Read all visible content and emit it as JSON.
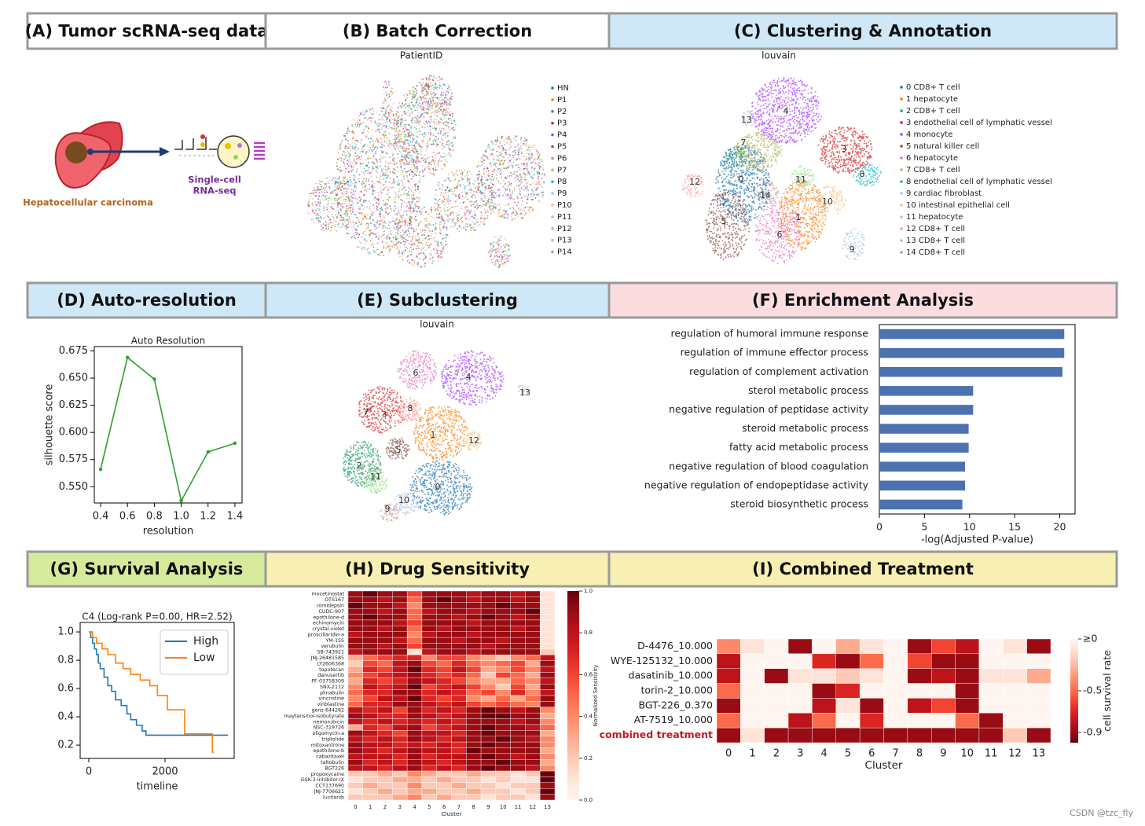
{
  "panels": [
    "(A) Tumor scRNA-seq data",
    "(B) Batch Correction",
    "(C) Clustering & Annotation",
    "(D) Auto-resolution",
    "(E) Subclustering",
    "(F) Enrichment Analysis",
    "(G) Survival Analysis",
    "(H) Drug Sensitivity",
    "(I) Combined Treatment"
  ],
  "illustration": {
    "tumor_label": "Hepatocellular carcinoma",
    "method_label": [
      "Single-cell",
      "RNA-seq"
    ]
  },
  "batch": {
    "title": "PatientID",
    "legend": [
      "HN",
      "P1",
      "P2",
      "P3",
      "P4",
      "P5",
      "P6",
      "P7",
      "P8",
      "P9",
      "P10",
      "P11",
      "P12",
      "P13",
      "P14"
    ],
    "colors": [
      "#1f77b4",
      "#ff7f0e",
      "#279e68",
      "#d62728",
      "#aa40fc",
      "#8c564b",
      "#e377c2",
      "#b5bd61",
      "#17becf",
      "#aec7e8",
      "#ffbb78",
      "#98df8a",
      "#ff9896",
      "#c5b0d5",
      "#c49c94"
    ]
  },
  "clustering": {
    "title": "louvain",
    "legend": [
      "0 CD8+ T cell",
      "1 hepatocyte",
      "2 CD8+ T cell",
      "3 endothelial cell of lymphatic vessel",
      "4 monocyte",
      "5 natural killer cell",
      "6 hepatocyte",
      "7 CD8+ T cell",
      "8 endothelial cell of lymphatic vessel",
      "9 cardiac fibroblast",
      "10 intestinal epithelial cell",
      "11 hepatocyte",
      "12 CD8+ T cell",
      "13 CD8+ T cell",
      "14 CD8+ T cell"
    ],
    "colors": [
      "#1f77b4",
      "#ff7f0e",
      "#279e68",
      "#d62728",
      "#aa40fc",
      "#8c564b",
      "#e377c2",
      "#b5bd61",
      "#17becf",
      "#aec7e8",
      "#ffbb78",
      "#98df8a",
      "#ff9896",
      "#c5b0d5",
      "#c49c94"
    ],
    "map_labels": [
      "13",
      "4",
      "7",
      "3",
      "8",
      "12",
      "0",
      "11",
      "14",
      "10",
      "1",
      "5",
      "6",
      "9"
    ]
  },
  "subclustering": {
    "title": "louvain",
    "map_labels": [
      "6",
      "4",
      "13",
      "7",
      "3",
      "8",
      "1",
      "12",
      "5",
      "2",
      "11",
      "0",
      "10",
      "9"
    ]
  },
  "chart_data": [
    {
      "type": "line",
      "title": "Auto Resolution",
      "x_label": "resolution",
      "y_label": "silhouette score",
      "x": [
        0.4,
        0.6,
        0.8,
        1.0,
        1.2,
        1.4
      ],
      "values": [
        0.566,
        0.669,
        0.649,
        0.537,
        0.582,
        0.59
      ],
      "color": "#2ca02c",
      "markers": true,
      "xlim": [
        0.353,
        1.453
      ],
      "xticks": [
        0.4,
        0.6,
        0.8,
        {
          "value": 1,
          "label": "1.0"
        },
        1.2,
        1.4
      ],
      "ylim": [
        0.535,
        0.679
      ],
      "yticks": [
        {
          "value": 0.55,
          "label": "0.550"
        },
        0.575,
        {
          "value": 0.6,
          "label": "0.600"
        },
        0.625,
        {
          "value": 0.65,
          "label": "0.650"
        },
        0.675
      ]
    },
    {
      "type": "bar",
      "orientation": "horizontal",
      "x_label": "-log(Adjusted P-value)",
      "categories": [
        "regulation of humoral immune response",
        "regulation of immune effector process",
        "regulation of complement activation",
        "sterol metabolic process",
        "negative regulation of peptidase activity",
        "steroid metabolic process",
        "fatty acid metabolic process",
        "negative regulation of blood coagulation",
        "negative regulation of endopeptidase activity",
        "steroid biosynthetic process"
      ],
      "values": [
        20.5,
        20.5,
        20.3,
        10.4,
        10.4,
        9.9,
        9.9,
        9.5,
        9.5,
        9.2
      ],
      "color": "#4c72b0",
      "xlim": [
        0,
        21.7
      ],
      "xticks": [
        0,
        5,
        10,
        15,
        20
      ]
    },
    {
      "type": "line",
      "drawstyle": "steps-post",
      "title": "C4 (Log-rank P=0.00, HR=2.52)",
      "x_label": "timeline",
      "legend": "upper right",
      "series": [
        {
          "name": "High",
          "color": "#1f77b4",
          "x": [
            0,
            50,
            100,
            150,
            200,
            250,
            300,
            400,
            500,
            600,
            700,
            850,
            1000,
            1100,
            1250,
            1400,
            1500,
            3650
          ],
          "values": [
            1.0,
            0.96,
            0.92,
            0.88,
            0.84,
            0.78,
            0.74,
            0.68,
            0.62,
            0.58,
            0.52,
            0.48,
            0.42,
            0.38,
            0.34,
            0.3,
            0.27,
            0.27
          ]
        },
        {
          "name": "Low",
          "color": "#ff7f0e",
          "x": [
            0,
            100,
            200,
            350,
            500,
            700,
            900,
            1100,
            1350,
            1600,
            1800,
            2060,
            2515,
            3240,
            3280
          ],
          "values": [
            1.0,
            0.96,
            0.92,
            0.88,
            0.84,
            0.78,
            0.74,
            0.7,
            0.66,
            0.62,
            0.55,
            0.45,
            0.28,
            0.15,
            0.15
          ]
        }
      ],
      "xlim": [
        -227,
        3814
      ],
      "xticks": [
        0,
        2000
      ],
      "ylim": [
        0.106,
        1.067
      ],
      "yticks": [
        {
          "value": 1,
          "label": "1.0"
        },
        0.8,
        0.6,
        0.4,
        0.2
      ]
    },
    {
      "type": "heatmap",
      "cmap": "Reds",
      "x_label": "Cluster",
      "colorbar_label": "Normalized Sensitivity",
      "rows": [
        "mocetinostat",
        "OTS167",
        "romidepsin",
        "CUDC-907",
        "epothilone-d",
        "echinomycin",
        "crystal-violet",
        "proscillaridin-a",
        "YM-155",
        "verubulin",
        "SB-743921",
        "JNJ-26481585",
        "LY2606368",
        "topotecan",
        "danusertib",
        "PF-03758309",
        "SNX-2112",
        "plinabulin",
        "vincristine",
        "vinblastine",
        "genz-644282",
        "maytansinol-isobutyrate",
        "nemorubicin",
        "NSC-319726",
        "oligomycin-a",
        "triptolide",
        "mitoxantrone",
        "epothilone-b",
        "cabazitaxel",
        "taltobulin",
        "BGT226",
        "propoxycaine",
        "GSK-3-inhibitor-IX",
        "CCT137690",
        "JNJ-7706621",
        "lucitanib"
      ],
      "categories": [
        "0",
        "1",
        "2",
        "3",
        "4",
        "5",
        "6",
        "7",
        "8",
        "9",
        "10",
        "11",
        "12",
        "13"
      ],
      "values": [
        [
          0.9,
          1,
          0.9,
          0.9,
          0.6,
          0.9,
          0.9,
          0.9,
          0.8,
          0.9,
          0.9,
          0.8,
          0.9,
          0.1
        ],
        [
          0.9,
          0.9,
          0.8,
          0.9,
          0.5,
          0.9,
          1,
          0.9,
          0.8,
          0.9,
          0.9,
          0.8,
          0.9,
          0.1
        ],
        [
          1,
          0.9,
          0.9,
          0.8,
          0.4,
          0.9,
          0.9,
          0.9,
          0.9,
          0.9,
          1,
          0.9,
          0.9,
          0.1
        ],
        [
          0.9,
          0.9,
          0.8,
          0.9,
          0.5,
          0.8,
          0.9,
          0.9,
          0.8,
          0.9,
          0.9,
          0.9,
          1,
          0.1
        ],
        [
          0.9,
          1,
          0.9,
          0.9,
          0.5,
          0.9,
          0.9,
          0.8,
          0.9,
          1,
          0.9,
          0.8,
          0.9,
          0.1
        ],
        [
          0.9,
          0.9,
          0.9,
          0.8,
          0.6,
          0.9,
          0.9,
          0.9,
          0.8,
          0.9,
          0.9,
          0.9,
          0.9,
          0.1
        ],
        [
          0.9,
          0.9,
          0.8,
          0.9,
          0.5,
          0.9,
          0.8,
          0.9,
          0.9,
          0.9,
          0.9,
          0.8,
          0.9,
          0.1
        ],
        [
          0.8,
          0.9,
          0.9,
          0.9,
          0.4,
          0.8,
          0.9,
          0.9,
          0.8,
          0.9,
          0.9,
          0.9,
          0.9,
          0.1
        ],
        [
          0.9,
          0.9,
          0.9,
          0.8,
          0.5,
          0.9,
          0.9,
          0.8,
          0.9,
          0.9,
          0.8,
          0.9,
          0.9,
          0.1
        ],
        [
          0.9,
          0.9,
          0.8,
          0.9,
          0.6,
          0.9,
          0.9,
          0.9,
          0.9,
          0.8,
          0.9,
          0.9,
          0.9,
          0.1
        ],
        [
          0.8,
          0.9,
          0.9,
          0.9,
          0.1,
          0.8,
          0.9,
          0.9,
          0.8,
          0.9,
          0.9,
          0.9,
          0.9,
          0.2
        ],
        [
          0.3,
          0.5,
          0.6,
          0.7,
          0.7,
          0.4,
          0.6,
          0.6,
          0.4,
          0.3,
          0.2,
          0.4,
          0.5,
          0.8
        ],
        [
          0.2,
          0.6,
          0.5,
          0.8,
          0.9,
          0.6,
          0.5,
          0.7,
          0.5,
          0.4,
          0.5,
          0.6,
          0.3,
          0.9
        ],
        [
          0.3,
          0.7,
          0.6,
          0.8,
          1,
          0.7,
          0.6,
          0.8,
          0.6,
          0.3,
          0.4,
          0.6,
          0.4,
          0.8
        ],
        [
          0.4,
          0.6,
          0.7,
          0.8,
          0.9,
          0.7,
          0.6,
          0.7,
          0.5,
          0.2,
          0.6,
          0.5,
          0.3,
          0.9
        ],
        [
          0.3,
          0.7,
          0.6,
          0.7,
          0.9,
          0.8,
          0.7,
          0.6,
          0.4,
          0.3,
          0.3,
          0.5,
          0.4,
          0.8
        ],
        [
          0.4,
          0.8,
          0.7,
          0.8,
          1,
          0.6,
          0.7,
          0.8,
          0.6,
          0.4,
          0.2,
          0.6,
          0.3,
          0.9
        ],
        [
          0.5,
          0.7,
          0.7,
          0.9,
          0.9,
          0.7,
          0.8,
          0.7,
          0.5,
          0.6,
          0.4,
          0.7,
          0.4,
          0.8
        ],
        [
          0.4,
          0.6,
          0.8,
          0.8,
          1,
          0.7,
          0.6,
          0.7,
          0.4,
          0.3,
          0.5,
          0.3,
          0.5,
          0.9
        ],
        [
          0.5,
          0.7,
          0.7,
          0.9,
          0.9,
          0.8,
          0.7,
          0.8,
          0.6,
          0.5,
          0.6,
          0.5,
          0.4,
          0.9
        ],
        [
          0.8,
          0.7,
          0.8,
          0.6,
          0.9,
          0.7,
          0.8,
          0.7,
          0.9,
          1,
          0.9,
          0.8,
          0.9,
          0.4
        ],
        [
          0.9,
          0.8,
          0.7,
          0.7,
          0.9,
          0.8,
          0.7,
          0.8,
          0.9,
          1,
          1,
          0.9,
          0.9,
          0.3
        ],
        [
          0.8,
          0.7,
          0.8,
          0.7,
          0.8,
          0.7,
          0.8,
          0.7,
          0.9,
          0.9,
          0.9,
          0.8,
          0.9,
          0.4
        ],
        [
          0.3,
          0.7,
          0.6,
          0.8,
          0.9,
          0.6,
          0.7,
          0.8,
          0.9,
          1,
          0.9,
          0.9,
          0.8,
          0.5
        ],
        [
          0.9,
          0.8,
          0.7,
          0.6,
          0.9,
          0.8,
          0.8,
          0.7,
          0.9,
          1,
          0.9,
          0.9,
          0.9,
          0.3
        ],
        [
          0.8,
          0.7,
          0.8,
          0.7,
          0.9,
          0.8,
          0.7,
          0.8,
          0.9,
          0.9,
          1,
          0.9,
          0.8,
          0.4
        ],
        [
          0.9,
          0.8,
          0.8,
          0.7,
          0.8,
          0.7,
          0.8,
          0.7,
          0.9,
          1,
          0.9,
          0.9,
          0.9,
          0.4
        ],
        [
          0.9,
          0.8,
          0.7,
          0.8,
          0.9,
          0.8,
          0.8,
          0.7,
          1,
          0.9,
          0.9,
          0.9,
          0.9,
          0.3
        ],
        [
          0.8,
          0.8,
          0.8,
          0.7,
          0.9,
          0.7,
          0.8,
          0.8,
          0.9,
          1,
          0.9,
          0.8,
          0.9,
          0.4
        ],
        [
          0.9,
          0.7,
          0.8,
          0.7,
          0.9,
          0.8,
          0.7,
          0.8,
          0.9,
          0.9,
          1,
          0.9,
          0.9,
          0.3
        ],
        [
          0.8,
          0.8,
          0.7,
          0.8,
          0.9,
          0.7,
          0.8,
          0.7,
          0.9,
          1,
          0.9,
          0.9,
          0.8,
          0.4
        ],
        [
          0.2,
          0.2,
          0.3,
          0.2,
          0.4,
          0.3,
          0.2,
          0.2,
          0.3,
          0.2,
          0.2,
          0.1,
          0.2,
          1
        ],
        [
          0.1,
          0.2,
          0.2,
          0.3,
          0.3,
          0.2,
          0.3,
          0.2,
          0.2,
          0.1,
          0.2,
          0.1,
          0.1,
          1
        ],
        [
          0.2,
          0.3,
          0.2,
          0.2,
          0.4,
          0.2,
          0.2,
          0.3,
          0.2,
          0.2,
          0.1,
          0.2,
          0.2,
          0.9
        ],
        [
          0.1,
          0.2,
          0.3,
          0.2,
          0.3,
          0.3,
          0.2,
          0.2,
          0.3,
          0.2,
          0.2,
          0.1,
          0.2,
          1
        ],
        [
          0.2,
          0.2,
          0.2,
          0.3,
          0.4,
          0.2,
          0.3,
          0.2,
          0.2,
          0.1,
          0.2,
          0.2,
          0.1,
          0.9
        ]
      ],
      "clim": [
        0,
        1
      ],
      "cticks": [
        {
          "value": 0,
          "label": "0.0"
        },
        0.2,
        0.4,
        0.6,
        0.8,
        {
          "value": 1,
          "label": "1.0"
        }
      ]
    },
    {
      "type": "heatmap",
      "cmap": "Reds_r",
      "x_label": "Cluster",
      "colorbar_label": "cell survival rate",
      "rows": [
        "D-4476_10.000",
        "WYE-125132_10.000",
        "dasatinib_10.000",
        "torin-2_10.000",
        "BGT-226_0.370",
        "AT-7519_10.000",
        "combined treatment"
      ],
      "highlight_rows": [
        6
      ],
      "highlight_color": "#c41a1f",
      "categories": [
        "0",
        "1",
        "2",
        "3",
        "4",
        "5",
        "6",
        "7",
        "8",
        "9",
        "10",
        "11",
        "12",
        "13"
      ],
      "values": [
        [
          -0.4,
          -0.1,
          0,
          -0.9,
          0,
          -0.3,
          -0.1,
          0,
          -0.9,
          -0.6,
          -0.8,
          0,
          -0.1,
          -0.9
        ],
        [
          -0.8,
          0,
          0,
          0,
          -0.7,
          -0.9,
          -0.5,
          0,
          -0.6,
          -0.9,
          -0.9,
          0,
          0,
          0
        ],
        [
          -0.8,
          0,
          -0.9,
          -0.1,
          -0.1,
          -0.2,
          -0.1,
          0,
          -0.9,
          -0.8,
          -0.9,
          -0.1,
          -0.1,
          -0.3
        ],
        [
          -0.5,
          0,
          0,
          0,
          -0.9,
          -0.7,
          0,
          0,
          0,
          0,
          -0.9,
          0,
          0,
          0
        ],
        [
          -0.9,
          0,
          0,
          0,
          -0.8,
          -0.1,
          -0.9,
          0,
          -0.8,
          -0.6,
          -0.9,
          0,
          0,
          0
        ],
        [
          -0.5,
          0,
          0,
          -0.8,
          -0.5,
          0,
          -0.7,
          0,
          0,
          0,
          -0.5,
          -0.9,
          0,
          0
        ],
        [
          -0.9,
          -0.1,
          -0.9,
          -0.9,
          -0.9,
          -0.9,
          -0.9,
          -0.9,
          -0.9,
          -0.9,
          -0.9,
          -0.9,
          -0.2,
          -0.9
        ]
      ],
      "clim": [
        -1,
        0
      ],
      "cticks": [
        {
          "value": 0,
          "label": "≥0"
        },
        -0.5,
        -0.9
      ]
    }
  ],
  "footer": "CSDN @tzc_fly"
}
